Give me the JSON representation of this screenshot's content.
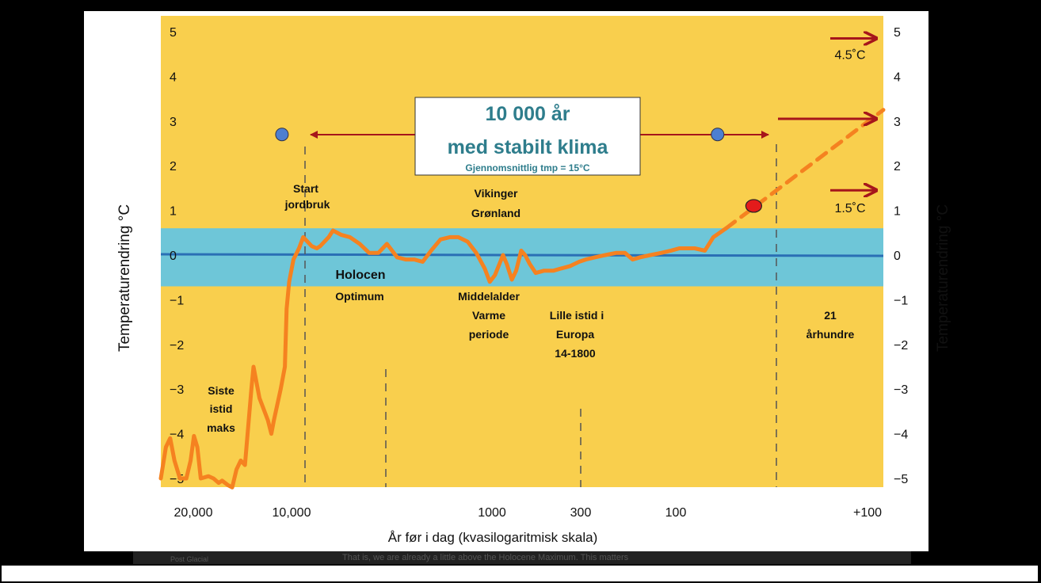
{
  "chart_data": {
    "type": "line",
    "x_axis": {
      "label": "År før i dag (kvasilogaritmisk skala)",
      "ticks": [
        "20,000",
        "10,000",
        "1000",
        "300",
        "100",
        "+100"
      ]
    },
    "y_axis": {
      "label_left": "Temperaturendring °C",
      "label_right": "Temperaturendring °C",
      "ylim": [
        -5,
        5
      ],
      "tick_labels": [
        "5",
        "4",
        "3",
        "2",
        "1",
        "0",
        "−1",
        "−2",
        "−3",
        "−4",
        "−5"
      ],
      "right_tick_labels": [
        "5",
        "4",
        "3",
        "2",
        "1",
        "0",
        "−1",
        "−2",
        "−3",
        "−4",
        "−5"
      ]
    },
    "series": [
      {
        "points": [
          [
            0.0,
            -5.0
          ],
          [
            0.012,
            -4.3
          ],
          [
            0.022,
            -4.1
          ],
          [
            0.032,
            -4.6
          ],
          [
            0.045,
            -5.0
          ],
          [
            0.06,
            -5.0
          ],
          [
            0.07,
            -4.6
          ],
          [
            0.078,
            -4.05
          ],
          [
            0.086,
            -4.3
          ],
          [
            0.094,
            -5.0
          ],
          [
            0.112,
            -4.95
          ],
          [
            0.124,
            -5.0
          ],
          [
            0.136,
            -5.1
          ],
          [
            0.144,
            -5.05
          ],
          [
            0.158,
            -5.15
          ],
          [
            0.168,
            -5.2
          ],
          [
            0.178,
            -4.8
          ],
          [
            0.188,
            -4.6
          ],
          [
            0.198,
            -4.7
          ],
          [
            0.213,
            -3.0
          ],
          [
            0.218,
            -2.5
          ],
          [
            0.232,
            -3.2
          ],
          [
            0.252,
            -3.7
          ],
          [
            0.26,
            -4.0
          ],
          [
            0.266,
            -3.7
          ],
          [
            0.282,
            -3.0
          ],
          [
            0.292,
            -2.5
          ],
          [
            0.296,
            -1.2
          ],
          [
            0.302,
            -0.6
          ],
          [
            0.312,
            -0.1
          ],
          [
            0.325,
            0.15
          ],
          [
            0.335,
            0.4
          ],
          [
            0.355,
            0.2
          ],
          [
            0.367,
            0.15
          ],
          [
            0.375,
            0.2
          ],
          [
            0.395,
            0.4
          ],
          [
            0.405,
            0.55
          ],
          [
            0.425,
            0.45
          ],
          [
            0.445,
            0.4
          ],
          [
            0.468,
            0.25
          ],
          [
            0.49,
            0.05
          ],
          [
            0.512,
            0.05
          ],
          [
            0.532,
            0.25
          ],
          [
            0.556,
            -0.05
          ],
          [
            0.576,
            -0.1
          ],
          [
            0.596,
            -0.1
          ],
          [
            0.616,
            -0.15
          ],
          [
            0.636,
            0.1
          ],
          [
            0.658,
            0.35
          ],
          [
            0.68,
            0.4
          ],
          [
            0.7,
            0.4
          ],
          [
            0.722,
            0.3
          ],
          [
            0.742,
            0.05
          ],
          [
            0.762,
            -0.3
          ],
          [
            0.774,
            -0.6
          ],
          [
            0.786,
            -0.45
          ],
          [
            0.805,
            0.0
          ],
          [
            0.814,
            -0.2
          ],
          [
            0.826,
            -0.55
          ],
          [
            0.836,
            -0.35
          ],
          [
            0.848,
            0.1
          ],
          [
            0.857,
            0.0
          ],
          [
            0.868,
            -0.2
          ],
          [
            0.882,
            -0.4
          ],
          [
            0.902,
            -0.35
          ],
          [
            0.924,
            -0.35
          ],
          [
            0.942,
            -0.3
          ],
          [
            0.962,
            -0.25
          ],
          [
            0.984,
            -0.15
          ],
          [
            1.0,
            -0.1
          ],
          [
            1.022,
            -0.05
          ],
          [
            1.046,
            0.0
          ],
          [
            1.072,
            0.05
          ],
          [
            1.092,
            0.05
          ],
          [
            1.11,
            -0.1
          ],
          [
            1.128,
            -0.05
          ],
          [
            1.152,
            0.0
          ],
          [
            1.178,
            0.05
          ],
          [
            1.2,
            0.1
          ],
          [
            1.22,
            0.15
          ],
          [
            1.256,
            0.15
          ],
          [
            1.28,
            0.1
          ],
          [
            1.3,
            0.4
          ],
          [
            1.33,
            0.6
          ]
        ]
      },
      {
        "style": "dashed",
        "points": [
          [
            1.33,
            0.6
          ],
          [
            1.7,
            3.25
          ]
        ]
      }
    ],
    "band": {
      "from": -0.7,
      "to": 0.6,
      "color": "#6ec6d8"
    },
    "zero_line": 0,
    "arrows_right": [
      {
        "y": 4.85,
        "label": "4.5˚C"
      },
      {
        "y": 3.05
      },
      {
        "y": 1.45,
        "label": "1.5˚C"
      }
    ],
    "markers": [
      {
        "type": "blue-dot",
        "x": 0.285,
        "y": 2.7
      },
      {
        "type": "blue-dot",
        "x": 1.31,
        "y": 2.7
      },
      {
        "type": "red-dot",
        "x": 1.395,
        "y": 1.1
      }
    ],
    "callout": {
      "line1": "10 000 år",
      "line2": "med stabilt klima",
      "line3": "Gjennomsnittlig tmp = 15°C"
    },
    "annotations": [
      {
        "id": "start-jordbruk",
        "lines": [
          "Start",
          "jordbruk"
        ]
      },
      {
        "id": "vikinger-gronland",
        "lines": [
          "Vikinger",
          "Grønland"
        ]
      },
      {
        "id": "holocen-optimum",
        "lines": [
          "Holocen",
          "Optimum"
        ]
      },
      {
        "id": "middelalder",
        "lines": [
          "Middelalder",
          "Varme",
          "periode"
        ]
      },
      {
        "id": "lille-istid",
        "lines": [
          "Lille istid i",
          "Europa",
          "14-1800"
        ]
      },
      {
        "id": "21-arhundre",
        "lines": [
          "21",
          "århundre"
        ]
      },
      {
        "id": "siste-istid",
        "lines": [
          "Siste",
          "istid",
          "maks"
        ]
      }
    ],
    "colors": {
      "background": "#f9cf4d",
      "line": "#f58220",
      "band": "#6ec6d8",
      "zero_line": "#2a6fb5",
      "arrow": "#a6161b",
      "blue_dot": "#4d7fd0",
      "red_dot": "#e31b1b",
      "callout_text": "#2e7d8c"
    }
  },
  "footer": {
    "overlay_text": "That is, we are already a little above the Holocene Maximum. This matters",
    "small_text": "Post Glacial"
  }
}
